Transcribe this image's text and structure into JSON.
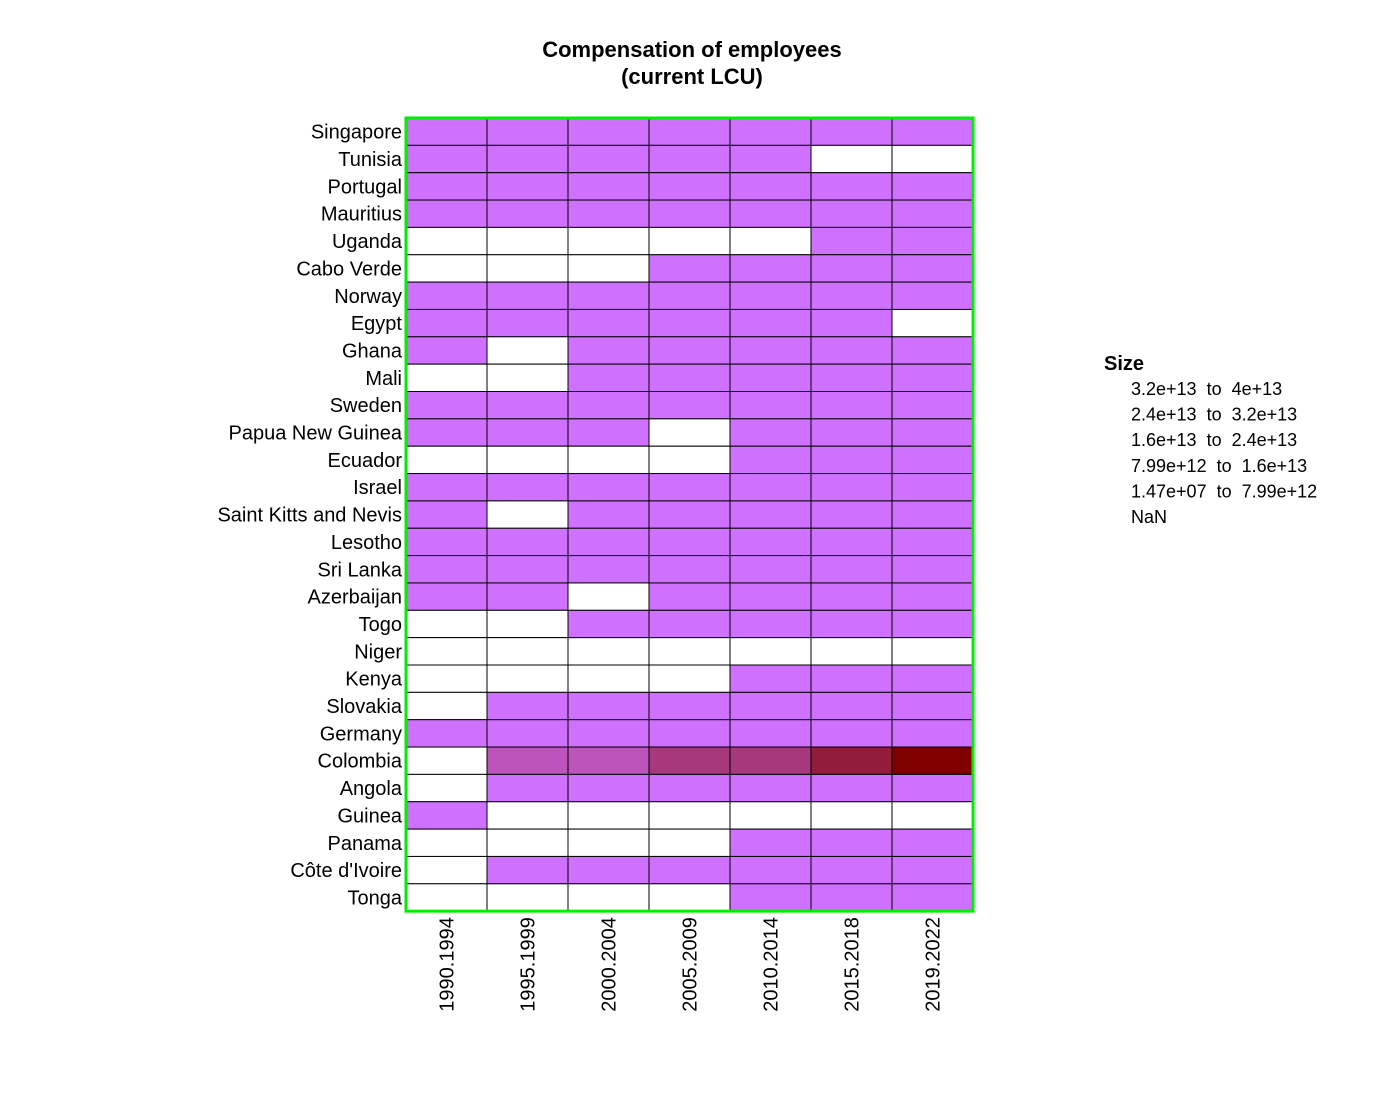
{
  "chart_data": {
    "type": "heatmap",
    "title": "Compensation of employees",
    "subtitle": "(current LCU)",
    "rows": [
      "Singapore",
      "Tunisia",
      "Portugal",
      "Mauritius",
      "Uganda",
      "Cabo Verde",
      "Norway",
      "Egypt",
      "Ghana",
      "Mali",
      "Sweden",
      "Papua New Guinea",
      "Ecuador",
      "Israel",
      "Saint Kitts and Nevis",
      "Lesotho",
      "Sri Lanka",
      "Azerbaijan",
      "Togo",
      "Niger",
      "Kenya",
      "Slovakia",
      "Germany",
      "Colombia",
      "Angola",
      "Guinea",
      "Panama",
      "Côte d'Ivoire",
      "Tonga"
    ],
    "columns": [
      "1990.1994",
      "1995.1999",
      "2000.2004",
      "2005.2009",
      "2010.2014",
      "2015.2018",
      "2019.2022"
    ],
    "bins": [
      {
        "label": "3.2e+13  to  4e+13",
        "color": "#800000"
      },
      {
        "label": "2.4e+13  to  3.2e+13",
        "color": "#931c3c"
      },
      {
        "label": "1.6e+13  to  2.4e+13",
        "color": "#a8387c"
      },
      {
        "label": "7.99e+12  to  1.6e+13",
        "color": "#bd54bc"
      },
      {
        "label": "1.47e+07  to  7.99e+12",
        "color": "#d070ff"
      },
      {
        "label": "NaN",
        "color": "#ffffff"
      }
    ],
    "cells": [
      [
        4,
        4,
        4,
        4,
        4,
        4,
        4
      ],
      [
        4,
        4,
        4,
        4,
        4,
        5,
        5
      ],
      [
        4,
        4,
        4,
        4,
        4,
        4,
        4
      ],
      [
        4,
        4,
        4,
        4,
        4,
        4,
        4
      ],
      [
        5,
        5,
        5,
        5,
        5,
        4,
        4
      ],
      [
        5,
        5,
        5,
        4,
        4,
        4,
        4
      ],
      [
        4,
        4,
        4,
        4,
        4,
        4,
        4
      ],
      [
        4,
        4,
        4,
        4,
        4,
        4,
        5
      ],
      [
        4,
        5,
        4,
        4,
        4,
        4,
        4
      ],
      [
        5,
        5,
        4,
        4,
        4,
        4,
        4
      ],
      [
        4,
        4,
        4,
        4,
        4,
        4,
        4
      ],
      [
        4,
        4,
        4,
        5,
        4,
        4,
        4
      ],
      [
        5,
        5,
        5,
        5,
        4,
        4,
        4
      ],
      [
        4,
        4,
        4,
        4,
        4,
        4,
        4
      ],
      [
        4,
        5,
        4,
        4,
        4,
        4,
        4
      ],
      [
        4,
        4,
        4,
        4,
        4,
        4,
        4
      ],
      [
        4,
        4,
        4,
        4,
        4,
        4,
        4
      ],
      [
        4,
        4,
        5,
        4,
        4,
        4,
        4
      ],
      [
        5,
        5,
        4,
        4,
        4,
        4,
        4
      ],
      [
        5,
        5,
        5,
        5,
        5,
        5,
        5
      ],
      [
        5,
        5,
        5,
        5,
        4,
        4,
        4
      ],
      [
        5,
        4,
        4,
        4,
        4,
        4,
        4
      ],
      [
        4,
        4,
        4,
        4,
        4,
        4,
        4
      ],
      [
        5,
        3,
        3,
        2,
        2,
        1,
        0
      ],
      [
        5,
        4,
        4,
        4,
        4,
        4,
        4
      ],
      [
        4,
        5,
        5,
        5,
        5,
        5,
        5
      ],
      [
        5,
        5,
        5,
        5,
        4,
        4,
        4
      ],
      [
        5,
        4,
        4,
        4,
        4,
        4,
        4
      ],
      [
        5,
        5,
        5,
        5,
        4,
        4,
        4
      ]
    ],
    "legend": {
      "title": "Size",
      "position": "right"
    },
    "frame_color": "#00ee00",
    "grid": true
  }
}
